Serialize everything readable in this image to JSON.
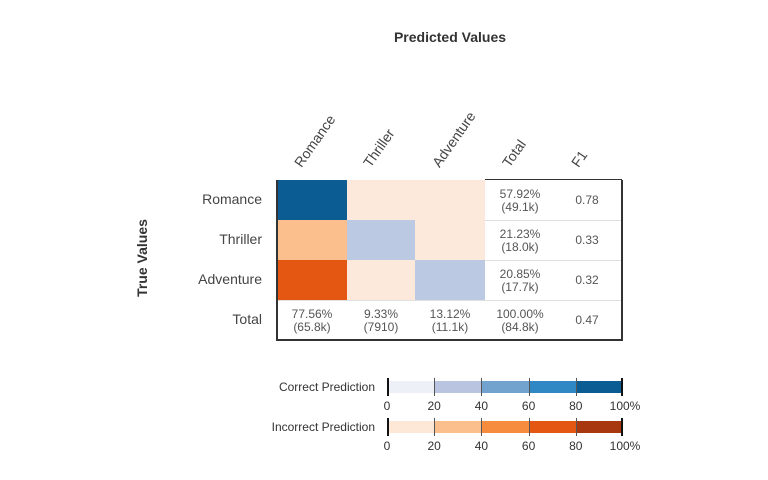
{
  "chart_data": {
    "type": "heatmap",
    "title": "Predicted Values",
    "ylabel": "True Values",
    "columns": [
      "Romance",
      "Thriller",
      "Adventure",
      "Total",
      "F1"
    ],
    "rows": [
      "Romance",
      "Thriller",
      "Adventure",
      "Total"
    ],
    "matrix_fraction_of_row": [
      [
        1.0,
        0.0,
        0.0
      ],
      [
        0.35,
        0.4,
        0.0
      ],
      [
        0.8,
        0.0,
        0.3
      ]
    ],
    "row_totals": [
      {
        "pct": "57.92%",
        "count": "(49.1k)"
      },
      {
        "pct": "21.23%",
        "count": "(18.0k)"
      },
      {
        "pct": "20.85%",
        "count": "(17.7k)"
      }
    ],
    "column_totals": [
      {
        "pct": "77.56%",
        "count": "(65.8k)"
      },
      {
        "pct": "9.33%",
        "count": "(7910)"
      },
      {
        "pct": "13.12%",
        "count": "(11.1k)"
      },
      {
        "pct": "100.00%",
        "count": "(84.8k)"
      }
    ],
    "f1": [
      "0.78",
      "0.33",
      "0.32",
      "0.47"
    ],
    "legend": [
      {
        "label": "Correct Prediction",
        "colors": [
          "#eef0f7",
          "#b9c5e0",
          "#72a3cf",
          "#2f87c4",
          "#0b5c92"
        ]
      },
      {
        "label": "Incorrect Prediction",
        "colors": [
          "#fde7d6",
          "#fbbf8d",
          "#f68c3d",
          "#e45713",
          "#a8380f"
        ]
      }
    ],
    "legend_ticks": [
      "0",
      "20",
      "40",
      "60",
      "80",
      "100%"
    ]
  }
}
